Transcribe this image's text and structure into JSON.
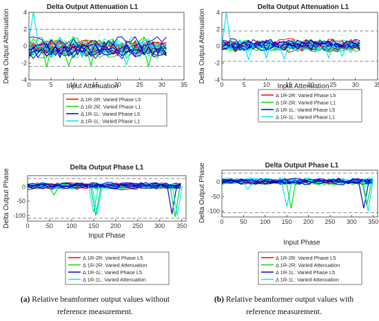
{
  "chart_data": [
    {
      "type": "line",
      "panel": "a",
      "title": "Delta Output Attenuation L1",
      "xlabel": "Input Attenuation",
      "ylabel": "Delta Output Attenuation",
      "xlim": [
        0,
        35
      ],
      "ylim": [
        -4,
        4
      ],
      "xticks": [
        "0",
        "5",
        "10",
        "15",
        "20",
        "25",
        "30",
        "35"
      ],
      "yticks": [
        "-4",
        "-2",
        "0",
        "2",
        "4"
      ],
      "ref_lines": [
        2,
        -2.4
      ],
      "data_x_max": 31,
      "band": [
        -1.6,
        1.3
      ],
      "spikes": [
        {
          "x": 1,
          "y": 4,
          "color": "#00e5ff"
        },
        {
          "x": 4,
          "y": -2.5,
          "color": "#00dd00"
        },
        {
          "x": 9,
          "y": -2.3,
          "color": "#00dd00"
        },
        {
          "x": 14,
          "y": -2.3,
          "color": "#00dd00"
        },
        {
          "x": 22,
          "y": -2.2,
          "color": "#00e5ff"
        },
        {
          "x": 27,
          "y": -2.4,
          "color": "#00dd00"
        }
      ],
      "legend": [
        "Δ 1R-2R: Varied Phase L5",
        "Δ 1R-2R: Varied Phase L1",
        "Δ 1R-1L: Varied Phase L5",
        "Δ 1R-1L: Varied Phase L1"
      ],
      "series_colors": [
        "#ff0000",
        "#00dd00",
        "#0000cc",
        "#00e5ff"
      ]
    },
    {
      "type": "line",
      "panel": "b",
      "title": "Delta Output Attenuation L1",
      "xlabel": "Input Attenuation",
      "ylabel": "Delta Output Attenuation",
      "xlim": [
        0,
        35
      ],
      "ylim": [
        -4,
        4
      ],
      "xticks": [
        "0",
        "5",
        "10",
        "15",
        "20",
        "25",
        "30",
        "35"
      ],
      "yticks": [
        "-4",
        "-2",
        "0",
        "2",
        "4"
      ],
      "ref_lines": [
        1.8,
        -1.8
      ],
      "data_x_max": 31,
      "band": [
        -0.8,
        1.0
      ],
      "spikes": [
        {
          "x": 1,
          "y": 4,
          "color": "#00e5ff"
        },
        {
          "x": 6,
          "y": -1.6,
          "color": "#00e5ff"
        },
        {
          "x": 10,
          "y": -1.4,
          "color": "#00e5ff"
        },
        {
          "x": 14,
          "y": -1.5,
          "color": "#00e5ff"
        },
        {
          "x": 24,
          "y": -1.4,
          "color": "#00e5ff"
        },
        {
          "x": 27,
          "y": -1.2,
          "color": "#00e5ff"
        }
      ],
      "legend": [
        "Δ 1R-2R: Varied Phase L5",
        "Δ 1R-2R: Varied Phase L1",
        "Δ 1R-1L: Varied Phase L5",
        "Δ 1R-1L: Varied Phase L1"
      ],
      "series_colors": [
        "#ff0000",
        "#00dd00",
        "#0000cc",
        "#00e5ff"
      ]
    },
    {
      "type": "line",
      "panel": "a",
      "title": "Delta Output Phase L1",
      "xlabel": "Input Phase",
      "ylabel": "Delta Output Phase",
      "xlim": [
        0,
        360
      ],
      "ylim": [
        -120,
        40
      ],
      "xticks": [
        "0",
        "50",
        "100",
        "150",
        "200",
        "250",
        "300",
        "350"
      ],
      "yticks": [
        "-100",
        "-50",
        "0"
      ],
      "ytick_values": [
        -100,
        -50,
        0
      ],
      "ref_lines": [
        30,
        -110
      ],
      "data_x_max": 348,
      "band": [
        -12,
        18
      ],
      "spikes": [
        {
          "x": 155,
          "y": -100,
          "color": "#00dd00"
        },
        {
          "x": 150,
          "y": -90,
          "color": "#00e5ff"
        },
        {
          "x": 158,
          "y": -95,
          "color": "#00e5ff"
        },
        {
          "x": 328,
          "y": -95,
          "color": "#0000cc"
        },
        {
          "x": 335,
          "y": -105,
          "color": "#00dd00"
        },
        {
          "x": 340,
          "y": -100,
          "color": "#00e5ff"
        },
        {
          "x": 60,
          "y": -28,
          "color": "#00dd00"
        }
      ],
      "legend": [
        "Δ 1R-2R: Varied Phase L5",
        "Δ 1R-2R: Varied Attenuation",
        "Δ 1R-1L: Varied Phase L5",
        "Δ 1R-1L: Varied Attenuation"
      ],
      "series_colors": [
        "#ff0000",
        "#00dd00",
        "#0000cc",
        "#00e5ff"
      ]
    },
    {
      "type": "line",
      "panel": "b",
      "title": "Delta Output Phase L1",
      "xlabel": "Input Phase",
      "ylabel": "Delta Output Phase",
      "xlim": [
        0,
        360
      ],
      "ylim": [
        -120,
        40
      ],
      "xticks": [
        "0",
        "50",
        "100",
        "150",
        "200",
        "250",
        "300",
        "350"
      ],
      "yticks": [
        "-100",
        "-50",
        "0"
      ],
      "ytick_values": [
        -100,
        -50,
        0
      ],
      "ref_lines": [
        30,
        -105
      ],
      "data_x_max": 348,
      "band": [
        -12,
        16
      ],
      "spikes": [
        {
          "x": 150,
          "y": -85,
          "color": "#00e5ff"
        },
        {
          "x": 160,
          "y": -90,
          "color": "#00dd00"
        },
        {
          "x": 328,
          "y": -90,
          "color": "#0000cc"
        },
        {
          "x": 338,
          "y": -100,
          "color": "#00e5ff"
        },
        {
          "x": 335,
          "y": -80,
          "color": "#00dd00"
        },
        {
          "x": 60,
          "y": -25,
          "color": "#00e5ff"
        }
      ],
      "legend": [
        "Δ 1R-2R: Varied Phase L5",
        "Δ 1R-2R: Varied Attenuation",
        "Δ 1R-1L: Varied Phase L5",
        "Δ 1R-1L: Varied Attenuation"
      ],
      "series_colors": [
        "#ff0000",
        "#00dd00",
        "#0000cc",
        "#00e5ff"
      ]
    }
  ],
  "captions": {
    "a": {
      "label": "(a)",
      "line1": " Relative beamformer output values without",
      "line2": "reference measurement."
    },
    "b": {
      "label": "(b)",
      "line1": " Relative beamformer output values with",
      "line2": "reference measurement."
    }
  }
}
